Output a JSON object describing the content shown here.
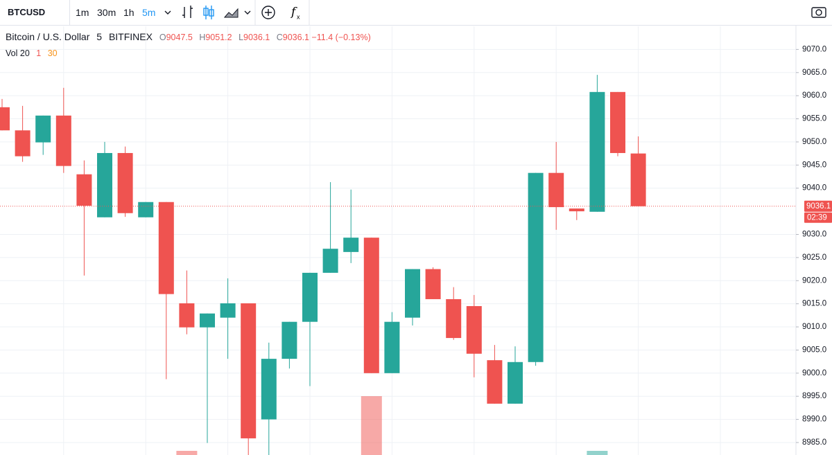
{
  "toolbar": {
    "symbol": "BTCUSD",
    "intervals": [
      "1m",
      "30m",
      "1h",
      "5m"
    ]
  },
  "legend": {
    "name": "Bitcoin / U.S. Dollar",
    "interval": "5",
    "exchange": "BITFINEX",
    "o": "O",
    "h": "H",
    "l": "L",
    "c": "C",
    "change": "−11.4",
    "change_pct": "(−0.13%)"
  },
  "volume_legend": {
    "label": "Vol",
    "p1": "20",
    "p2": "1",
    "p3": "30"
  },
  "countdown": "02:39",
  "chart_data": {
    "type": "candlestick",
    "up_color": "#26a69a",
    "down_color": "#ef5350",
    "grid": true,
    "ylim": [
      8982.3,
      9075
    ],
    "yticks": [
      {
        "value": 8985,
        "label": "8985.0"
      },
      {
        "value": 8990,
        "label": "8990.0"
      },
      {
        "value": 8995,
        "label": "8995.0"
      },
      {
        "value": 9000,
        "label": "9000.0"
      },
      {
        "value": 9005,
        "label": "9005.0"
      },
      {
        "value": 9010,
        "label": "9010.0"
      },
      {
        "value": 9015,
        "label": "9015.0"
      },
      {
        "value": 9020,
        "label": "9020.0"
      },
      {
        "value": 9025,
        "label": "9025.0"
      },
      {
        "value": 9030,
        "label": "9030.0"
      },
      {
        "value": 9040,
        "label": "9040.0"
      },
      {
        "value": 9045,
        "label": "9045.0"
      },
      {
        "value": 9050,
        "label": "9050.0"
      },
      {
        "value": 9055,
        "label": "9055.0"
      },
      {
        "value": 9060,
        "label": "9060.0"
      },
      {
        "value": 9065,
        "label": "9065.0"
      },
      {
        "value": 9070,
        "label": "9070.0"
      }
    ],
    "open": [
      9057.5,
      9052.5,
      9049.9,
      9055.7,
      9043.0,
      9033.7,
      9047.6,
      9033.7,
      9037.0,
      9015.1,
      9009.9,
      9012.0,
      9015.1,
      8990.0,
      9003.1,
      9011.1,
      9021.7,
      9026.2,
      9029.3,
      9000.0,
      9012.0,
      9022.5,
      9016.0,
      9014.5,
      9002.8,
      8993.4,
      9002.4,
      9043.3,
      9035.6,
      9034.9,
      9060.8,
      9047.5
    ],
    "high": [
      9059.3,
      9057.8,
      9055.7,
      9061.7,
      9046.0,
      9050.0,
      9049.0,
      9037.0,
      9037.0,
      9022.2,
      9012.9,
      9020.5,
      9015.1,
      9006.6,
      9011.1,
      9021.7,
      9041.3,
      9039.7,
      9029.3,
      9013.2,
      9022.5,
      9022.9,
      9018.6,
      9016.9,
      9006.1,
      9005.8,
      9043.3,
      9050.0,
      9035.6,
      9064.5,
      9060.8,
      9051.2
    ],
    "low": [
      9052.5,
      9045.7,
      9047.2,
      9043.3,
      9021.1,
      9033.7,
      9033.8,
      9033.7,
      8998.7,
      9008.4,
      8984.9,
      9003.1,
      8981.0,
      8981.0,
      9001.0,
      8997.2,
      9021.7,
      9023.8,
      9000.0,
      9000.0,
      9010.3,
      9016.0,
      9007.2,
      8999.1,
      8993.4,
      8993.4,
      9001.6,
      9031.0,
      9033.1,
      9034.9,
      9046.9,
      9036.1
    ],
    "close": [
      9052.5,
      9046.9,
      9055.7,
      9044.8,
      9036.2,
      9047.6,
      9034.6,
      9037.0,
      9017.1,
      9009.9,
      9012.9,
      9015.1,
      8985.9,
      9003.1,
      9011.1,
      9021.7,
      9026.9,
      9029.3,
      9000.0,
      9011.1,
      9022.5,
      9016.0,
      9007.6,
      9004.2,
      8993.4,
      9002.4,
      9043.3,
      9035.9,
      9035.0,
      9060.8,
      9047.6,
      9036.1
    ],
    "volume": [
      null,
      null,
      null,
      null,
      null,
      null,
      null,
      null,
      null,
      6,
      null,
      null,
      null,
      null,
      null,
      null,
      null,
      null,
      85,
      null,
      null,
      null,
      null,
      null,
      null,
      null,
      null,
      null,
      null,
      6,
      null,
      null
    ]
  }
}
